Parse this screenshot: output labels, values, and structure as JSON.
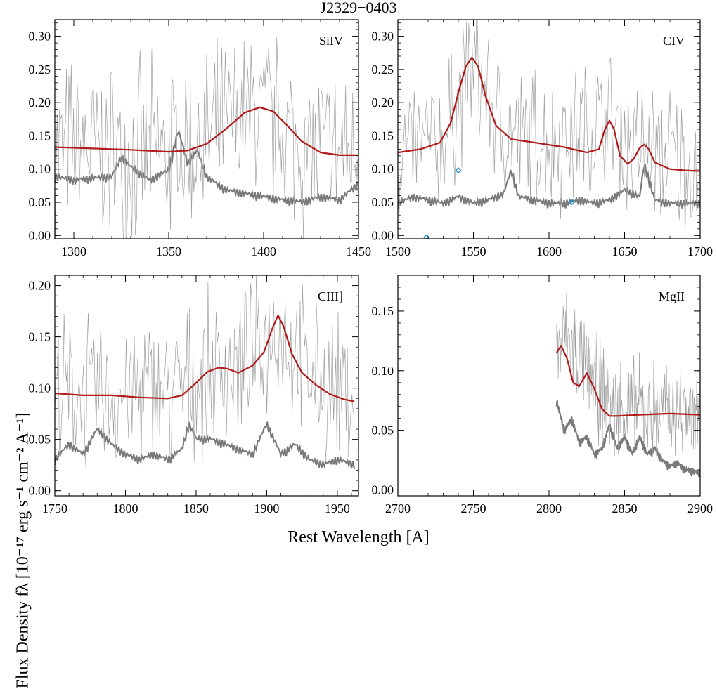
{
  "figure": {
    "title": "J2329−0403",
    "xlabel": "Rest Wavelength [A]",
    "ylabel": "Flux Density fλ [10⁻¹⁷ erg s⁻¹ cm⁻² A⁻¹]"
  },
  "colors": {
    "spectrum": "#a0a0a0",
    "error": "#7a7a7a",
    "model": "#b31b1b",
    "markers": "#1e90d6",
    "axes": "#000000"
  },
  "chart_data": [
    {
      "type": "line",
      "panel_label": "SiIV",
      "xlim": [
        1290,
        1450
      ],
      "ylim": [
        -0.005,
        0.325
      ],
      "xticks": [
        1300,
        1350,
        1400,
        1450
      ],
      "yticks": [
        0.0,
        0.05,
        0.1,
        0.15,
        0.2,
        0.25,
        0.3
      ],
      "ytick_labels": [
        "0.00",
        "0.05",
        "0.10",
        "0.15",
        "0.20",
        "0.25",
        "0.30"
      ],
      "series": [
        {
          "role": "model",
          "x": [
            1290,
            1310,
            1330,
            1350,
            1360,
            1370,
            1380,
            1390,
            1398,
            1405,
            1412,
            1420,
            1430,
            1440,
            1450
          ],
          "y": [
            0.133,
            0.131,
            0.129,
            0.126,
            0.128,
            0.138,
            0.16,
            0.185,
            0.193,
            0.187,
            0.167,
            0.142,
            0.125,
            0.121,
            0.121
          ]
        },
        {
          "role": "error",
          "x": [
            1290,
            1300,
            1310,
            1320,
            1325,
            1330,
            1340,
            1350,
            1355,
            1360,
            1365,
            1370,
            1380,
            1390,
            1400,
            1410,
            1420,
            1430,
            1440,
            1450
          ],
          "y": [
            0.08,
            0.075,
            0.078,
            0.08,
            0.11,
            0.095,
            0.075,
            0.09,
            0.15,
            0.1,
            0.12,
            0.08,
            0.06,
            0.055,
            0.05,
            0.045,
            0.042,
            0.05,
            0.045,
            0.07
          ]
        },
        {
          "role": "spectrum",
          "x_range": [
            1290,
            1450
          ],
          "center": [
            1290,
            1310,
            1340,
            1370,
            1398,
            1420,
            1450
          ],
          "center_y": [
            0.13,
            0.13,
            0.12,
            0.14,
            0.19,
            0.13,
            0.12
          ],
          "amplitude": 0.11
        }
      ],
      "markers": []
    },
    {
      "type": "line",
      "panel_label": "CIV",
      "xlim": [
        1500,
        1700
      ],
      "ylim": [
        -0.005,
        0.325
      ],
      "xticks": [
        1500,
        1550,
        1600,
        1650,
        1700
      ],
      "yticks": [
        0.0,
        0.05,
        0.1,
        0.15,
        0.2,
        0.25,
        0.3
      ],
      "ytick_labels": [
        "0.00",
        "0.05",
        "0.10",
        "0.15",
        "0.20",
        "0.25",
        "0.30"
      ],
      "series": [
        {
          "role": "model",
          "x": [
            1500,
            1515,
            1528,
            1535,
            1540,
            1545,
            1549,
            1553,
            1558,
            1565,
            1575,
            1590,
            1610,
            1625,
            1633,
            1637,
            1640,
            1643,
            1647,
            1652,
            1656,
            1660,
            1663,
            1666,
            1670,
            1680,
            1690,
            1700
          ],
          "y": [
            0.125,
            0.13,
            0.14,
            0.17,
            0.215,
            0.255,
            0.268,
            0.255,
            0.21,
            0.165,
            0.145,
            0.14,
            0.133,
            0.125,
            0.13,
            0.16,
            0.173,
            0.16,
            0.12,
            0.108,
            0.115,
            0.132,
            0.137,
            0.13,
            0.11,
            0.1,
            0.098,
            0.097
          ]
        },
        {
          "role": "error",
          "x": [
            1500,
            1510,
            1520,
            1530,
            1540,
            1550,
            1560,
            1570,
            1575,
            1580,
            1590,
            1600,
            1610,
            1620,
            1630,
            1640,
            1650,
            1660,
            1663,
            1670,
            1680,
            1690,
            1700
          ],
          "y": [
            0.04,
            0.05,
            0.045,
            0.04,
            0.05,
            0.04,
            0.045,
            0.055,
            0.09,
            0.05,
            0.045,
            0.04,
            0.04,
            0.045,
            0.04,
            0.045,
            0.06,
            0.05,
            0.1,
            0.045,
            0.04,
            0.04,
            0.04
          ]
        },
        {
          "role": "spectrum",
          "x_range": [
            1500,
            1700
          ],
          "center": [
            1500,
            1530,
            1549,
            1570,
            1600,
            1640,
            1663,
            1700
          ],
          "center_y": [
            0.12,
            0.14,
            0.26,
            0.15,
            0.14,
            0.17,
            0.13,
            0.1
          ],
          "amplitude": 0.09
        }
      ],
      "markers": [
        {
          "x": 1540,
          "y": 0.098
        },
        {
          "x": 1615,
          "y": 0.05
        },
        {
          "x": 1519,
          "y": -0.003
        }
      ]
    },
    {
      "type": "line",
      "panel_label": "CIII]",
      "xlim": [
        1750,
        1965
      ],
      "ylim": [
        -0.005,
        0.21
      ],
      "xticks": [
        1750,
        1800,
        1850,
        1900,
        1950
      ],
      "yticks": [
        0.0,
        0.05,
        0.1,
        0.15,
        0.2
      ],
      "ytick_labels": [
        "0.00",
        "0.05",
        "0.10",
        "0.15",
        "0.20"
      ],
      "series": [
        {
          "role": "model",
          "x": [
            1750,
            1770,
            1790,
            1810,
            1830,
            1840,
            1850,
            1858,
            1866,
            1872,
            1880,
            1890,
            1898,
            1904,
            1908,
            1912,
            1918,
            1925,
            1935,
            1945,
            1955,
            1962
          ],
          "y": [
            0.095,
            0.093,
            0.093,
            0.091,
            0.09,
            0.093,
            0.105,
            0.116,
            0.12,
            0.119,
            0.115,
            0.122,
            0.135,
            0.158,
            0.171,
            0.16,
            0.133,
            0.115,
            0.103,
            0.094,
            0.089,
            0.087
          ]
        },
        {
          "role": "error",
          "x": [
            1750,
            1760,
            1770,
            1780,
            1790,
            1800,
            1810,
            1820,
            1830,
            1840,
            1845,
            1850,
            1860,
            1870,
            1880,
            1890,
            1900,
            1910,
            1920,
            1930,
            1940,
            1950,
            1962
          ],
          "y": [
            0.025,
            0.04,
            0.03,
            0.055,
            0.04,
            0.03,
            0.025,
            0.03,
            0.025,
            0.035,
            0.06,
            0.045,
            0.045,
            0.04,
            0.035,
            0.03,
            0.06,
            0.03,
            0.04,
            0.025,
            0.02,
            0.025,
            0.02
          ]
        },
        {
          "role": "spectrum",
          "x_range": [
            1750,
            1962
          ],
          "center": [
            1750,
            1800,
            1840,
            1866,
            1890,
            1908,
            1930,
            1962
          ],
          "center_y": [
            0.095,
            0.095,
            0.1,
            0.12,
            0.125,
            0.16,
            0.11,
            0.09
          ],
          "amplitude": 0.06
        }
      ],
      "markers": []
    },
    {
      "type": "line",
      "panel_label": "MgII",
      "xlim": [
        2700,
        2900
      ],
      "ylim": [
        -0.005,
        0.18
      ],
      "xticks": [
        2700,
        2750,
        2800,
        2850,
        2900
      ],
      "yticks": [
        0.0,
        0.05,
        0.1,
        0.15
      ],
      "ytick_labels": [
        "0.00",
        "0.05",
        "0.10",
        "0.15"
      ],
      "series": [
        {
          "role": "model",
          "x": [
            2805,
            2808,
            2812,
            2816,
            2820,
            2825,
            2830,
            2835,
            2840,
            2845,
            2860,
            2880,
            2900
          ],
          "y": [
            0.115,
            0.121,
            0.11,
            0.09,
            0.087,
            0.098,
            0.085,
            0.068,
            0.062,
            0.062,
            0.063,
            0.064,
            0.063
          ]
        },
        {
          "role": "error",
          "x": [
            2805,
            2810,
            2815,
            2820,
            2825,
            2830,
            2835,
            2840,
            2845,
            2850,
            2855,
            2860,
            2865,
            2870,
            2875,
            2880,
            2885,
            2890,
            2900
          ],
          "y": [
            0.07,
            0.045,
            0.055,
            0.035,
            0.04,
            0.025,
            0.03,
            0.05,
            0.03,
            0.04,
            0.025,
            0.04,
            0.025,
            0.03,
            0.02,
            0.015,
            0.018,
            0.012,
            0.01
          ]
        },
        {
          "role": "spectrum",
          "x_range": [
            2805,
            2900
          ],
          "center": [
            2805,
            2810,
            2825,
            2840,
            2870,
            2900
          ],
          "center_y": [
            0.11,
            0.13,
            0.1,
            0.07,
            0.065,
            0.065
          ],
          "amplitude": 0.035
        }
      ],
      "markers": []
    }
  ]
}
